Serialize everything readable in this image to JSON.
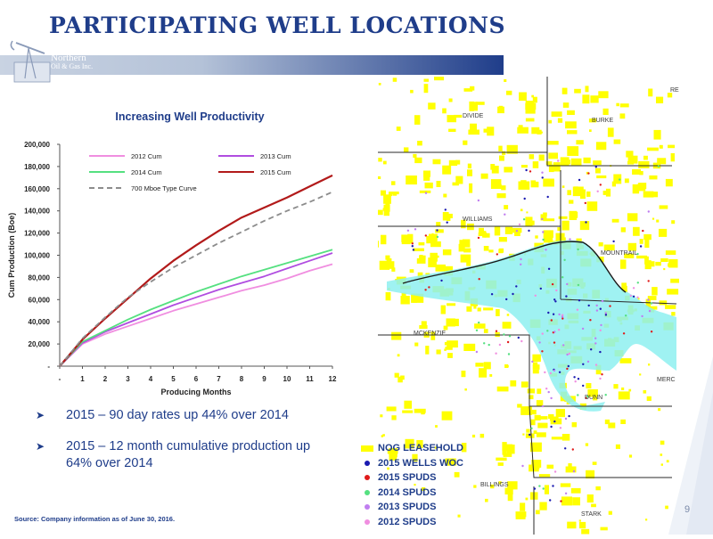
{
  "slide": {
    "title": "PARTICIPATING WELL LOCATIONS",
    "logo": {
      "line1": "Northern",
      "line2": "Oil & Gas Inc."
    },
    "page_number": "9",
    "source": "Source:  Company information as of June 30, 2016."
  },
  "bullets": [
    "2015 – 90 day rates up 44% over 2014",
    "2015 – 12 month cumulative production up 64% over 2014"
  ],
  "chart_data": {
    "type": "line",
    "title": "Increasing Well Productivity",
    "xlabel": "Producing Months",
    "ylabel": "Cum Production (Boe)",
    "x": [
      0,
      1,
      2,
      3,
      4,
      5,
      6,
      7,
      8,
      9,
      10,
      11,
      12
    ],
    "x_tick_labels": [
      "-",
      "1",
      "2",
      "3",
      "4",
      "5",
      "6",
      "7",
      "8",
      "9",
      "10",
      "11",
      "12"
    ],
    "y_ticks": [
      0,
      20000,
      40000,
      60000,
      80000,
      100000,
      120000,
      140000,
      160000,
      180000,
      200000
    ],
    "y_tick_labels": [
      "-",
      "20,000",
      "40,000",
      "60,000",
      "80,000",
      "100,000",
      "120,000",
      "140,000",
      "160,000",
      "180,000",
      "200,000"
    ],
    "ylim": [
      0,
      200000
    ],
    "xlim": [
      0,
      12
    ],
    "grid": false,
    "legend_position": "top",
    "series": [
      {
        "name": "2012 Cum",
        "color": "#f08ee0",
        "dashed": false,
        "values": [
          0,
          20000,
          29000,
          36000,
          43000,
          50000,
          56000,
          62000,
          68000,
          73000,
          79000,
          86000,
          92000
        ]
      },
      {
        "name": "2013 Cum",
        "color": "#b04de0",
        "dashed": false,
        "values": [
          0,
          21000,
          31000,
          39000,
          47000,
          55000,
          62000,
          69000,
          75000,
          81000,
          88000,
          95000,
          102000
        ]
      },
      {
        "name": "2014 Cum",
        "color": "#55e080",
        "dashed": false,
        "values": [
          0,
          22000,
          32000,
          42000,
          51000,
          59000,
          67000,
          74000,
          81000,
          87000,
          93000,
          99000,
          105000
        ]
      },
      {
        "name": "2015 Cum",
        "color": "#b21a1a",
        "dashed": false,
        "values": [
          0,
          24000,
          43000,
          61000,
          79000,
          95000,
          109000,
          122000,
          134000,
          143000,
          152000,
          162000,
          172000
        ]
      },
      {
        "name": "700 Mboe Type Curve",
        "color": "#8c8c8c",
        "dashed": true,
        "values": [
          0,
          25000,
          44000,
          62000,
          76000,
          89000,
          100000,
          111000,
          121000,
          131000,
          140000,
          148000,
          157000
        ]
      }
    ]
  },
  "map": {
    "county_labels": [
      "DIVIDE",
      "BURKE",
      "WILLIAMS",
      "MOUNTRAIL",
      "MCKENZIE",
      "DUNN",
      "MERC",
      "BILLINGS",
      "STARK",
      "RE"
    ],
    "legend": [
      {
        "label": "NOG LEASEHOLD",
        "color": "#ffff00",
        "shape": "rect"
      },
      {
        "label": "2015 WELLS WOC",
        "color": "#1a1ab0",
        "shape": "dot"
      },
      {
        "label": "2015 SPUDS",
        "color": "#e01a1a",
        "shape": "dot"
      },
      {
        "label": "2014 SPUDS",
        "color": "#55e080",
        "shape": "dot"
      },
      {
        "label": "2013 SPUDS",
        "color": "#c07ef0",
        "shape": "dot"
      },
      {
        "label": "2012 SPUDS",
        "color": "#f08ee0",
        "shape": "dot"
      }
    ]
  }
}
